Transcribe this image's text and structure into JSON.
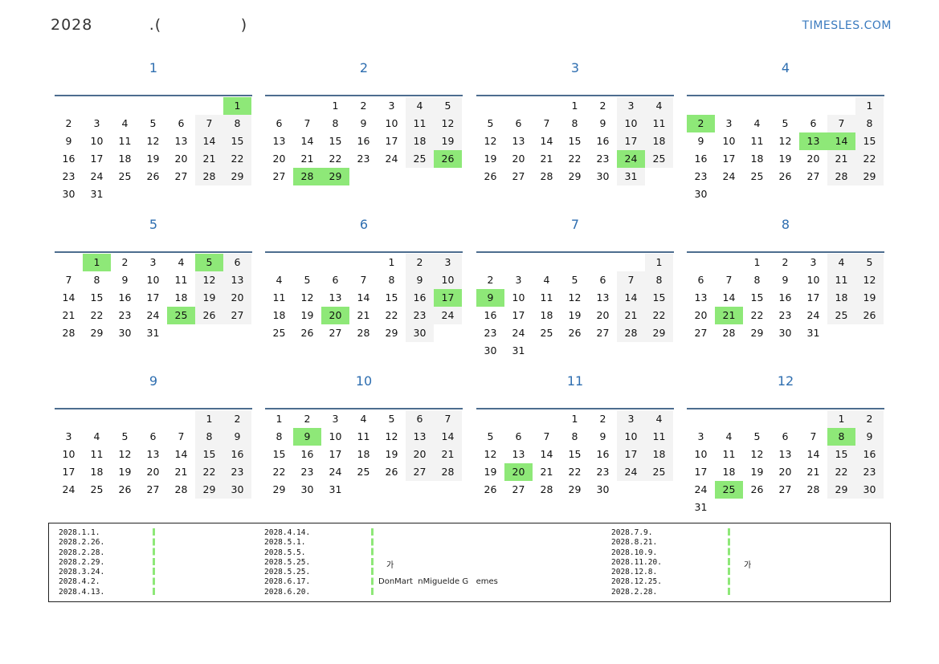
{
  "header": {
    "title": "2028          .(              )",
    "site": "TIMESLES.COM"
  },
  "colors": {
    "accent": "#2e6eb0",
    "holiday": "#8ee878",
    "weekend": "#f3f3f3"
  },
  "months": [
    {
      "name": "1",
      "start": 6,
      "days": 31,
      "holidays": [
        1
      ]
    },
    {
      "name": "2",
      "start": 2,
      "days": 29,
      "holidays": [
        26,
        28,
        29
      ]
    },
    {
      "name": "3",
      "start": 3,
      "days": 31,
      "holidays": [
        24
      ]
    },
    {
      "name": "4",
      "start": 6,
      "days": 30,
      "holidays": [
        2,
        13,
        14
      ]
    },
    {
      "name": "5",
      "start": 1,
      "days": 31,
      "holidays": [
        1,
        5,
        25
      ]
    },
    {
      "name": "6",
      "start": 4,
      "days": 30,
      "holidays": [
        17,
        20
      ]
    },
    {
      "name": "7",
      "start": 6,
      "days": 31,
      "holidays": [
        9
      ]
    },
    {
      "name": "8",
      "start": 2,
      "days": 31,
      "holidays": [
        21
      ]
    },
    {
      "name": "9",
      "start": 5,
      "days": 30,
      "holidays": []
    },
    {
      "name": "10",
      "start": 0,
      "days": 31,
      "holidays": [
        9
      ]
    },
    {
      "name": "11",
      "start": 3,
      "days": 30,
      "holidays": [
        20
      ]
    },
    {
      "name": "12",
      "start": 5,
      "days": 31,
      "holidays": [
        8,
        25
      ]
    }
  ],
  "holiday_dates": {
    "col1": [
      "2028.1.1.",
      "2028.2.26.",
      "2028.2.28.",
      "2028.2.29.",
      "2028.3.24.",
      "2028.4.2.",
      "2028.4.13."
    ],
    "col2": [
      "2028.4.14.",
      "2028.5.1.",
      "2028.5.5.",
      "2028.5.25.",
      "2028.5.25.",
      "2028.6.17.",
      "2028.6.20."
    ],
    "col3": [
      "2028.7.9.",
      "2028.8.21.",
      "2028.10.9.",
      "2028.11.20.",
      "2028.12.8.",
      "2028.12.25.",
      "2028.2.28."
    ]
  },
  "holiday_names": {
    "n1": "가",
    "n2": "DonMart  nMiguelde G   emes",
    "n3": "가"
  }
}
